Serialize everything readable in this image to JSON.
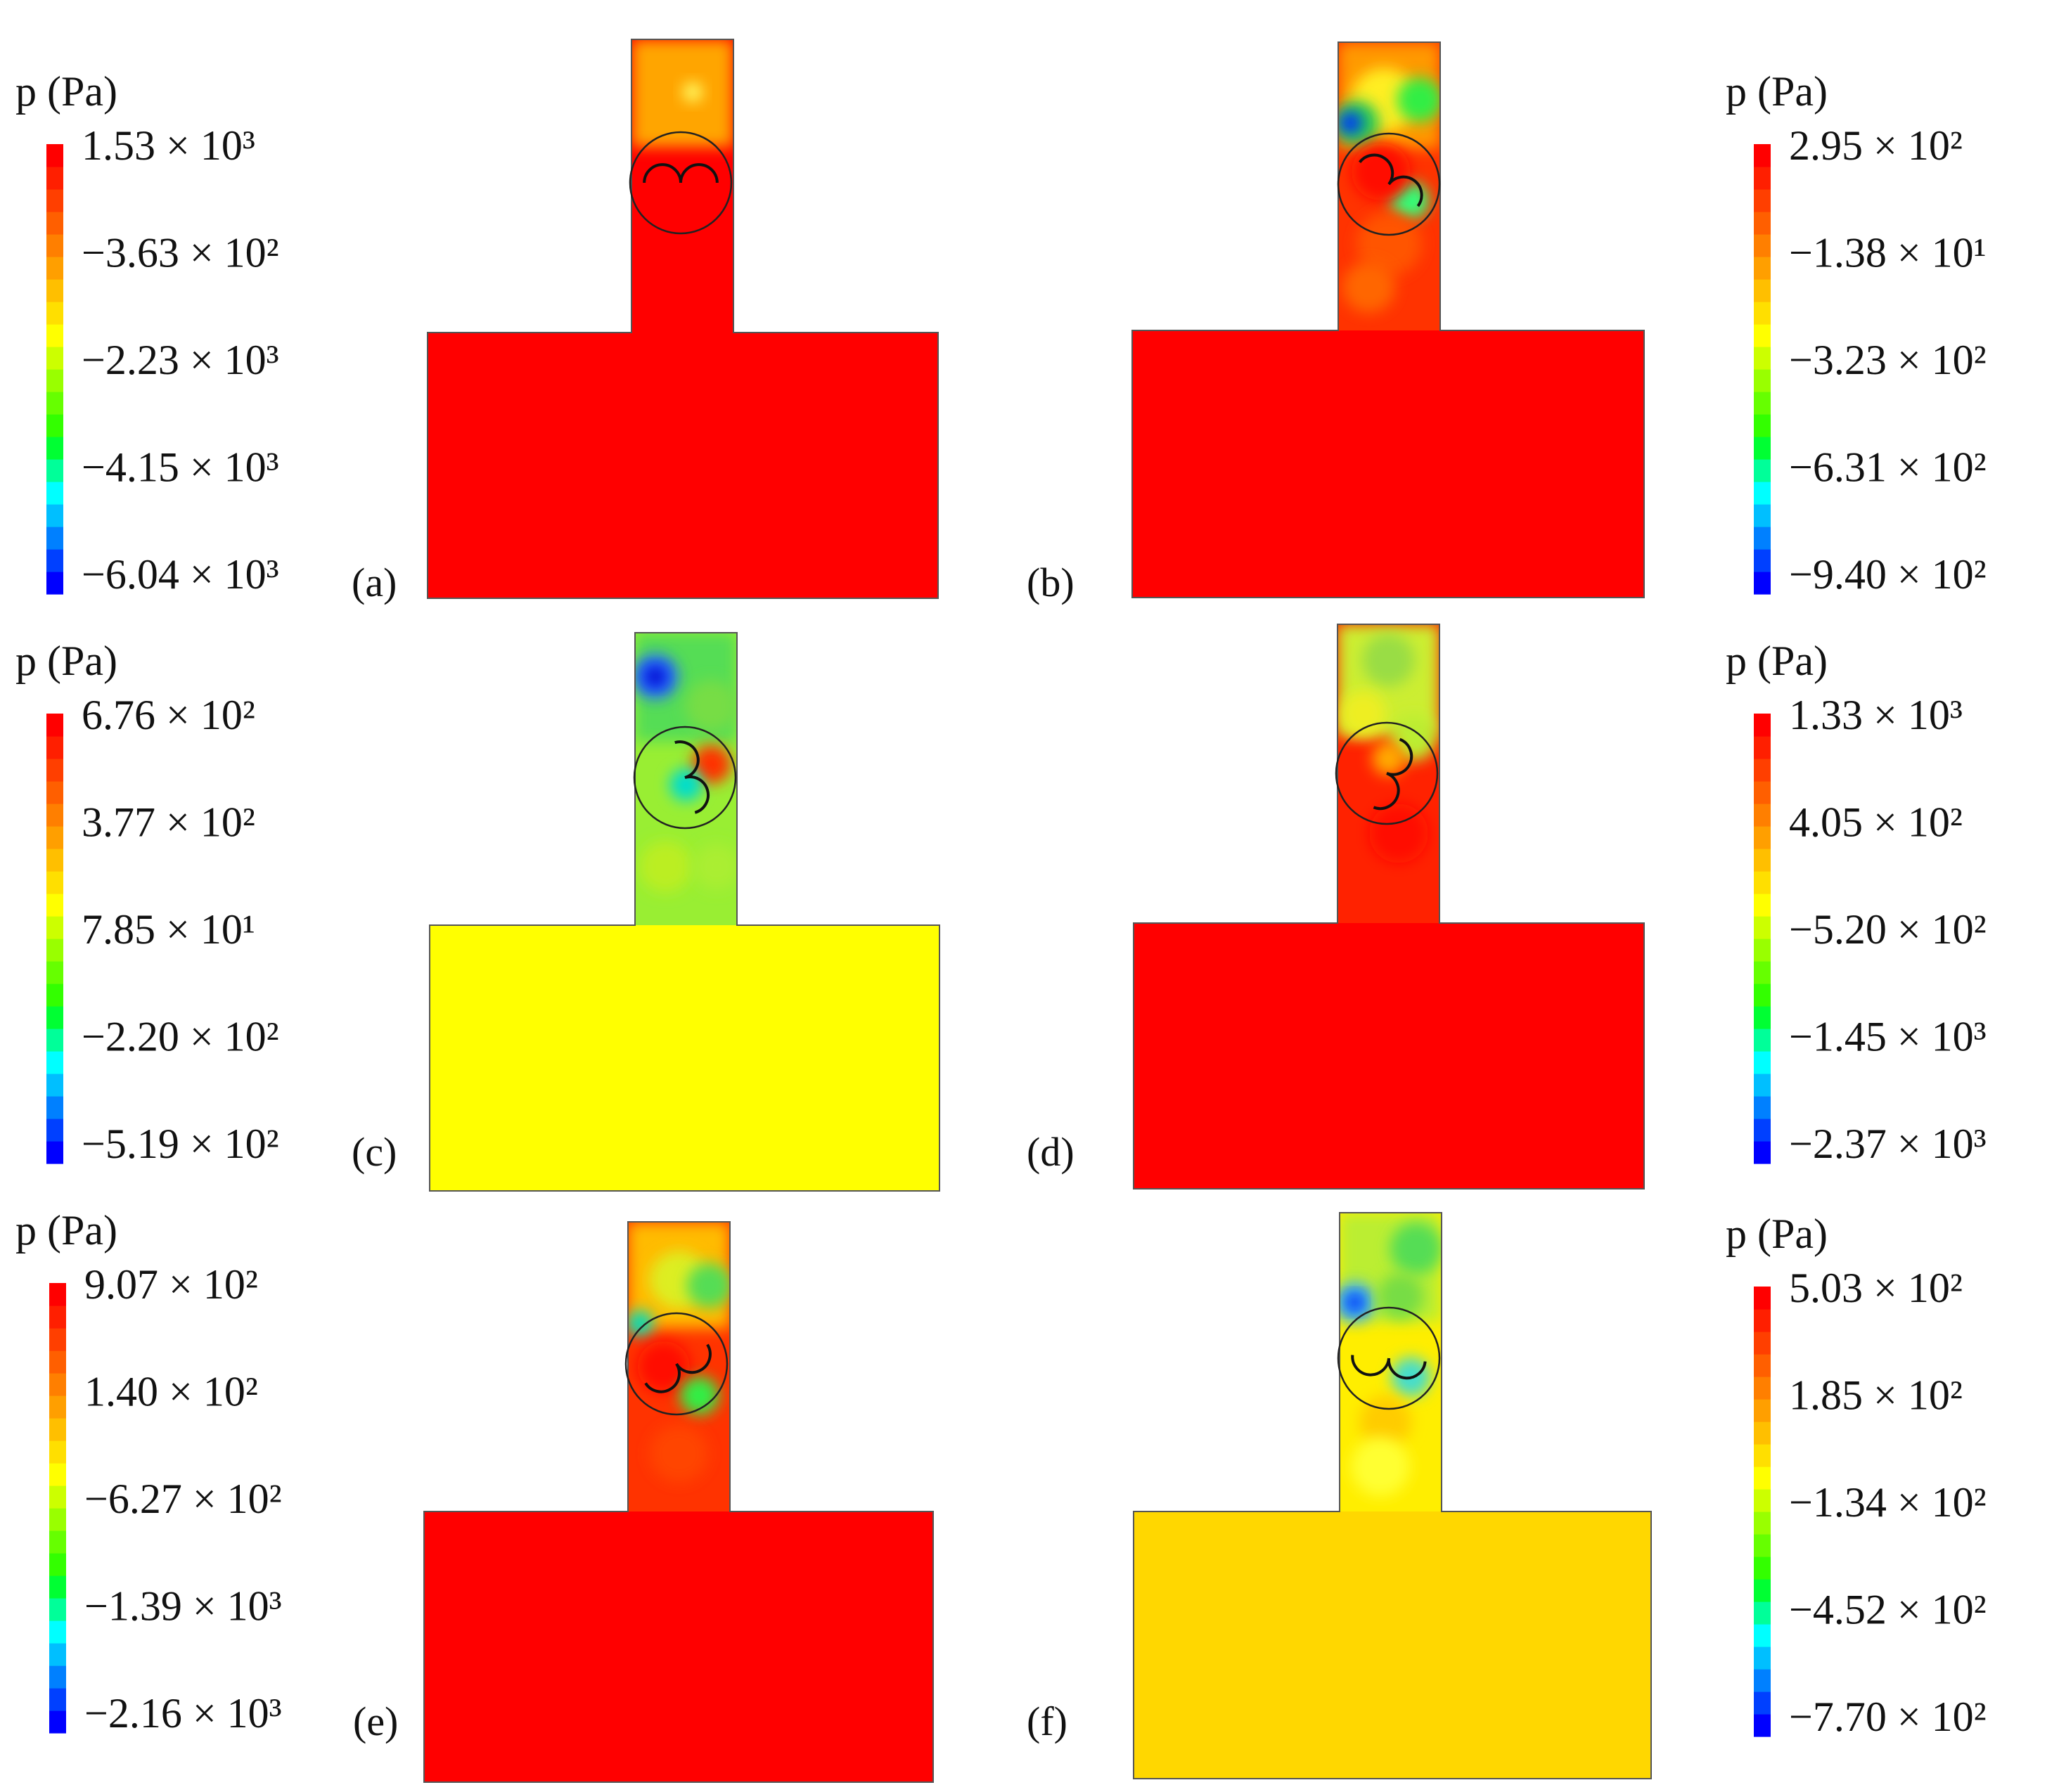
{
  "colormap": [
    "#0000ff",
    "#0040ff",
    "#0080ff",
    "#00bfff",
    "#00ffff",
    "#00ff99",
    "#00ff33",
    "#33ff00",
    "#66ff00",
    "#99ff00",
    "#ccff00",
    "#ffff00",
    "#ffdf00",
    "#ffbf00",
    "#ff9f00",
    "#ff7f00",
    "#ff5f00",
    "#ff3f00",
    "#ff1f00",
    "#ff0000"
  ],
  "panels": [
    {
      "tag": "(a)",
      "colorbar": {
        "title": "p (Pa)",
        "labels": [
          "1.53 × 10³",
          "−3.63 × 10²",
          "−2.23 × 10³",
          "−4.15 × 10³",
          "−6.04 × 10³"
        ]
      },
      "fields": {
        "reservoir": "#ff0000",
        "channel_lower": "#ff0000",
        "channel_upper": "#ffa500"
      },
      "blobs": [
        {
          "u": 0.6,
          "v": 0.18,
          "r": 0.03,
          "c": "#ffff66"
        }
      ]
    },
    {
      "tag": "(b)",
      "colorbar": {
        "title": "p (Pa)",
        "labels": [
          "2.95 × 10²",
          "−1.38 × 10¹",
          "−3.23 × 10²",
          "−6.31 × 10²",
          "−9.40 × 10²"
        ]
      },
      "fields": {
        "reservoir": "#ff0000",
        "channel_lower": "#ff3300",
        "channel_upper": "#ff9900"
      },
      "blobs": [
        {
          "u": 0.45,
          "v": 0.2,
          "r": 0.1,
          "c": "#ffee22"
        },
        {
          "u": 0.18,
          "v": 0.28,
          "r": 0.07,
          "c": "#22cc55"
        },
        {
          "u": 0.12,
          "v": 0.28,
          "r": 0.035,
          "c": "#0033ff"
        },
        {
          "u": 0.8,
          "v": 0.2,
          "r": 0.07,
          "c": "#33ee44"
        },
        {
          "u": 0.7,
          "v": 0.55,
          "r": 0.06,
          "c": "#33ff77"
        },
        {
          "u": 0.42,
          "v": 0.45,
          "r": 0.09,
          "c": "#ff1100"
        },
        {
          "u": 0.5,
          "v": 0.7,
          "r": 0.1,
          "c": "#ff5500"
        },
        {
          "u": 0.3,
          "v": 0.85,
          "r": 0.08,
          "c": "#ff6600"
        }
      ]
    },
    {
      "tag": "(c)",
      "colorbar": {
        "title": "p (Pa)",
        "labels": [
          "6.76 × 10²",
          "3.77 × 10²",
          "7.85 × 10¹",
          "−2.20 × 10²",
          "−5.19 × 10²"
        ]
      },
      "fields": {
        "reservoir": "#ffff00",
        "channel_lower": "#99ee33",
        "channel_upper": "#55dd55"
      },
      "blobs": [
        {
          "u": 0.2,
          "v": 0.15,
          "r": 0.07,
          "c": "#2266ff"
        },
        {
          "u": 0.2,
          "v": 0.15,
          "r": 0.03,
          "c": "#0000cc"
        },
        {
          "u": 0.75,
          "v": 0.45,
          "r": 0.06,
          "c": "#ff3300"
        },
        {
          "u": 0.5,
          "v": 0.52,
          "r": 0.05,
          "c": "#00ddcc"
        },
        {
          "u": 0.75,
          "v": 0.25,
          "r": 0.08,
          "c": "#77dd44"
        },
        {
          "u": 0.3,
          "v": 0.8,
          "r": 0.08,
          "c": "#bbee22"
        },
        {
          "u": 0.8,
          "v": 0.8,
          "r": 0.07,
          "c": "#aaee33"
        }
      ]
    },
    {
      "tag": "(d)",
      "colorbar": {
        "title": "p (Pa)",
        "labels": [
          "1.33 × 10³",
          "4.05 × 10²",
          "−5.20 × 10²",
          "−1.45 × 10³",
          "−2.37 × 10³"
        ]
      },
      "fields": {
        "reservoir": "#ff0000",
        "channel_lower": "#ff2200",
        "channel_upper": "#ccee33"
      },
      "blobs": [
        {
          "u": 0.5,
          "v": 0.12,
          "r": 0.08,
          "c": "#99dd44"
        },
        {
          "u": 0.25,
          "v": 0.3,
          "r": 0.07,
          "c": "#eeee22"
        },
        {
          "u": 0.75,
          "v": 0.38,
          "r": 0.07,
          "c": "#bbee33"
        },
        {
          "u": 0.5,
          "v": 0.45,
          "r": 0.05,
          "c": "#ffaa00"
        },
        {
          "u": 0.6,
          "v": 0.7,
          "r": 0.09,
          "c": "#ff1100"
        }
      ]
    },
    {
      "tag": "(e)",
      "colorbar": {
        "title": "p (Pa)",
        "labels": [
          "9.07 × 10²",
          "1.40 × 10²",
          "−6.27 × 10²",
          "−1.39 × 10³",
          "−2.16 × 10³"
        ]
      },
      "fields": {
        "reservoir": "#ff0000",
        "channel_lower": "#ff3300",
        "channel_upper": "#ffbb00"
      },
      "blobs": [
        {
          "u": 0.5,
          "v": 0.2,
          "r": 0.09,
          "c": "#ddee22"
        },
        {
          "u": 0.8,
          "v": 0.22,
          "r": 0.07,
          "c": "#55dd55"
        },
        {
          "u": 0.12,
          "v": 0.35,
          "r": 0.04,
          "c": "#00ddbb"
        },
        {
          "u": 0.35,
          "v": 0.5,
          "r": 0.08,
          "c": "#ff1100"
        },
        {
          "u": 0.7,
          "v": 0.6,
          "r": 0.06,
          "c": "#33ee44"
        },
        {
          "u": 0.5,
          "v": 0.8,
          "r": 0.09,
          "c": "#ff4400"
        }
      ]
    },
    {
      "tag": "(f)",
      "colorbar": {
        "title": "p (Pa)",
        "labels": [
          "5.03 × 10²",
          "1.85 × 10²",
          "−1.34 × 10²",
          "−4.52 × 10²",
          "−7.70 × 10²"
        ]
      },
      "fields": {
        "reservoir": "#ffd700",
        "channel_lower": "#ffee00",
        "channel_upper": "#bbee33"
      },
      "blobs": [
        {
          "u": 0.75,
          "v": 0.12,
          "r": 0.08,
          "c": "#55dd55"
        },
        {
          "u": 0.15,
          "v": 0.3,
          "r": 0.06,
          "c": "#33aaff"
        },
        {
          "u": 0.15,
          "v": 0.3,
          "r": 0.025,
          "c": "#0022ee"
        },
        {
          "u": 0.6,
          "v": 0.28,
          "r": 0.07,
          "c": "#77dd44"
        },
        {
          "u": 0.7,
          "v": 0.55,
          "r": 0.06,
          "c": "#44ddcc"
        },
        {
          "u": 0.45,
          "v": 0.7,
          "r": 0.08,
          "c": "#ffcc00"
        },
        {
          "u": 0.4,
          "v": 0.85,
          "r": 0.09,
          "c": "#ffff33"
        }
      ]
    }
  ]
}
